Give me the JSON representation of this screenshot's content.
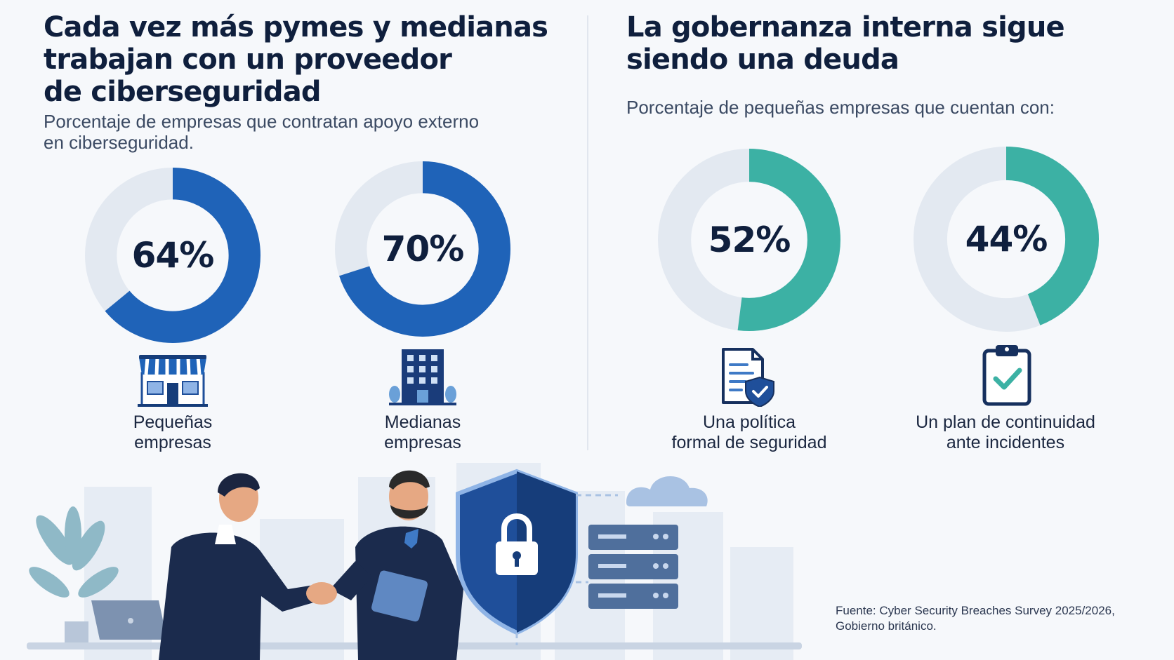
{
  "left": {
    "title": "Cada vez más pymes y medianas\ntrabajan con un proveedor\nde ciberseguridad",
    "subtitle": "Porcentaje de empresas que contratan apoyo externo\nen ciberseguridad."
  },
  "right": {
    "title": "La gobernanza interna sigue\nsiendo una deuda",
    "subtitle": "Porcentaje de pequeñas empresas que cuentan con:"
  },
  "chart_data": [
    {
      "type": "pie",
      "title": "Cada vez más pymes y medianas trabajan con un proveedor de ciberseguridad",
      "subtitle": "Porcentaje de empresas que contratan apoyo externo en ciberseguridad.",
      "categories": [
        "Pequeñas empresas",
        "Medianas empresas"
      ],
      "values": [
        64,
        70
      ],
      "labels": [
        "64%",
        "70%"
      ],
      "unit": "%",
      "color": "#1f63b8",
      "track_color": "#e3e9f1"
    },
    {
      "type": "pie",
      "title": "La gobernanza interna sigue siendo una deuda",
      "subtitle": "Porcentaje de pequeñas empresas que cuentan con:",
      "categories": [
        "Una política formal de seguridad",
        "Un plan de continuidad ante incidentes"
      ],
      "values": [
        52,
        44
      ],
      "labels": [
        "52%",
        "44%"
      ],
      "unit": "%",
      "color": "#3cb1a4",
      "track_color": "#e3e9f1"
    }
  ],
  "captions": [
    "Pequeñas\nempresas",
    "Medianas\nempresas",
    "Una política\nformal de seguridad",
    "Un plan de continuidad\nante incidentes"
  ],
  "icons": [
    "storefront-icon",
    "office-building-icon",
    "security-policy-document-icon",
    "clipboard-check-icon"
  ],
  "source": "Fuente: Cyber Security Breaches Survey 2025/2026,\nGobierno británico."
}
